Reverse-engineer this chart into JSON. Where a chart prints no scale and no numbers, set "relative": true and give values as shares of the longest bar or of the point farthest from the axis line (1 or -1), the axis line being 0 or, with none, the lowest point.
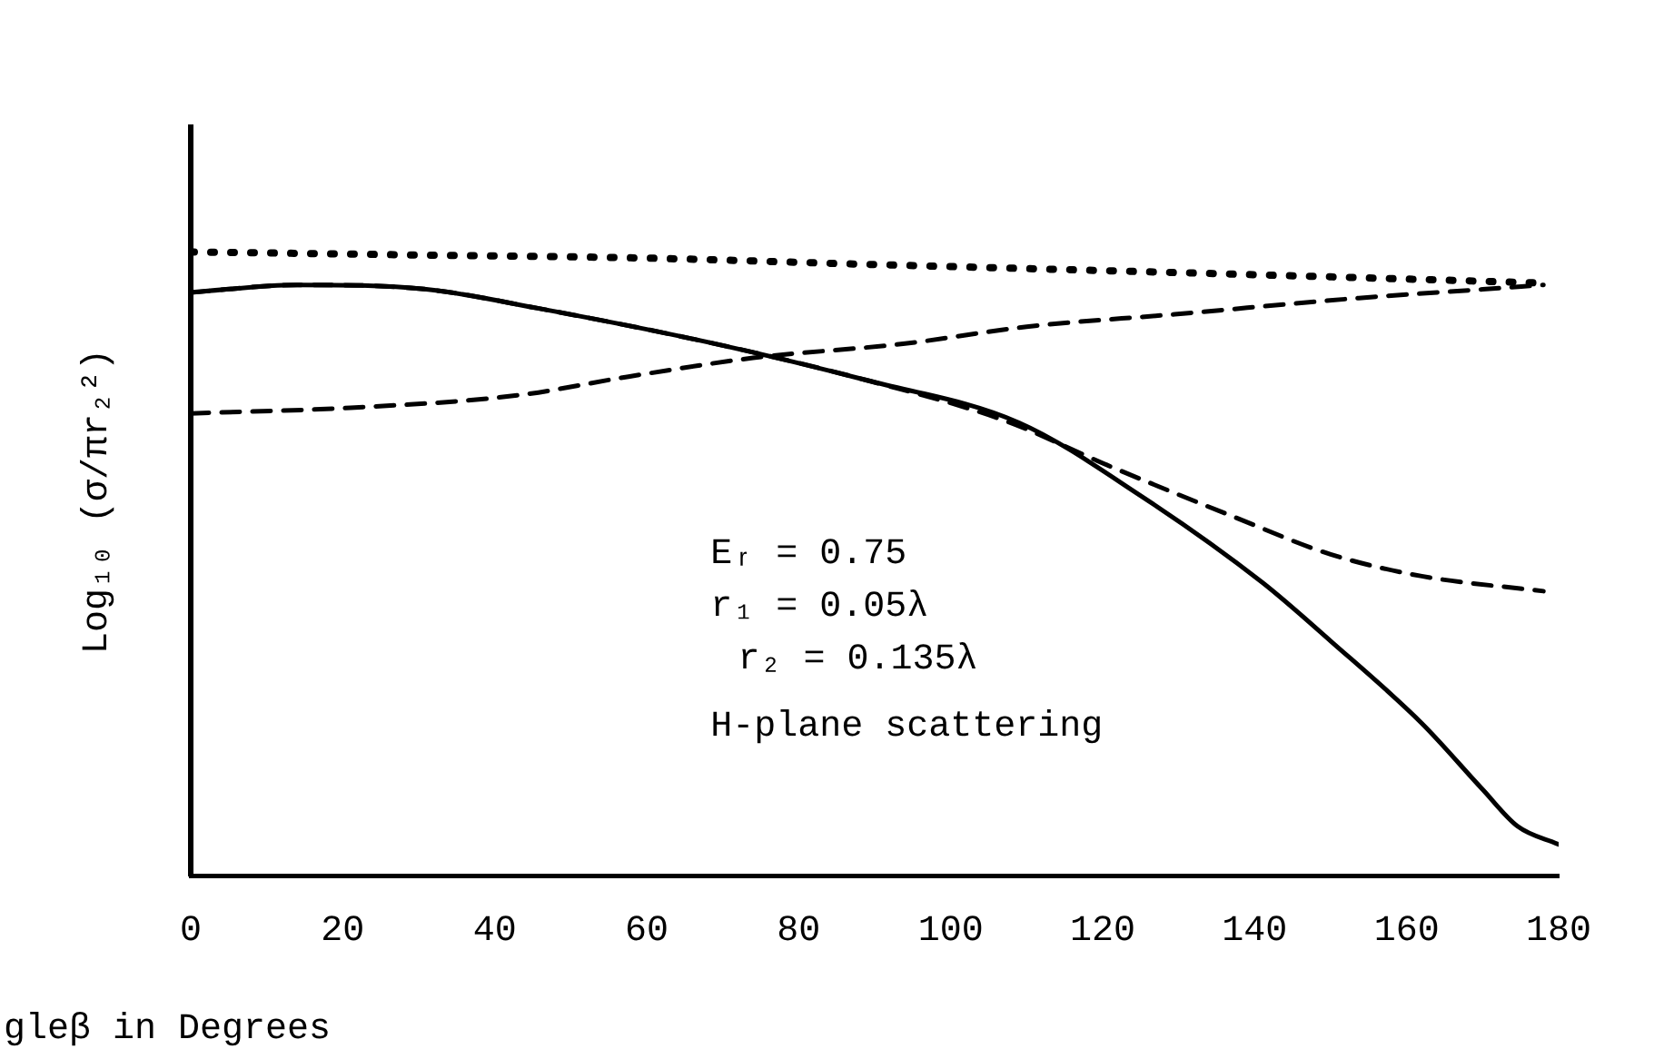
{
  "chart_data": {
    "type": "line",
    "relative": true,
    "xlabel": "gleβ in Degrees",
    "ylabel": "Log₁₀ (σ/πr₂²)",
    "xlim": [
      0,
      180
    ],
    "xticks": [
      0,
      20,
      40,
      60,
      80,
      100,
      120,
      140,
      160,
      180
    ],
    "grid": false,
    "legend": false,
    "marker": "none",
    "annotations": [
      "Eᵣ = 0.75",
      "r₁ = 0.05λ",
      "r₂ = 0.135λ",
      "H-plane scattering"
    ],
    "series": [
      {
        "color": "#000000",
        "line_style": "dotted",
        "x": [
          0,
          30,
          60,
          89,
          120,
          150,
          178
        ],
        "values": [
          1,
          0.995,
          0.99,
          0.98,
          0.97,
          0.96,
          0.95
        ]
      },
      {
        "color": "#000000",
        "line_style": "solid",
        "x": [
          0,
          14,
          31,
          45.5,
          70,
          89,
          109,
          125,
          141,
          150,
          162,
          170,
          174.6,
          180
        ],
        "values": [
          0.935,
          0.947,
          0.94,
          0.91,
          0.85,
          0.794,
          0.726,
          0.609,
          0.47,
          0.376,
          0.244,
          0.138,
          0.079,
          0.05
        ]
      },
      {
        "color": "#000000",
        "line_style": "dashed",
        "x": [
          0,
          14,
          31,
          45.5,
          70,
          89,
          107,
          121,
          137.5,
          150,
          162,
          178
        ],
        "values": [
          0.935,
          0.947,
          0.94,
          0.91,
          0.85,
          0.794,
          0.73,
          0.656,
          0.574,
          0.515,
          0.48,
          0.456
        ]
      },
      {
        "color": "#000000",
        "line_style": "dashed",
        "x": [
          0,
          21,
          43,
          57.6,
          74,
          94,
          110,
          129.5,
          153.7,
          170,
          178
        ],
        "values": [
          0.741,
          0.75,
          0.77,
          0.8,
          0.83,
          0.853,
          0.88,
          0.9,
          0.926,
          0.94,
          0.947
        ]
      }
    ]
  }
}
